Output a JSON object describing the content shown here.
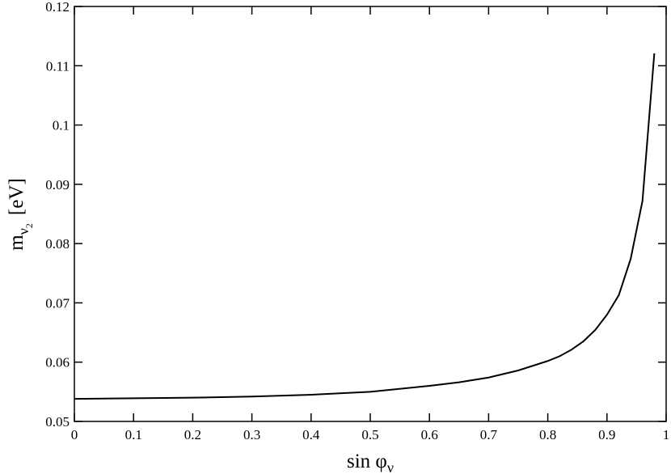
{
  "chart_data": {
    "type": "line",
    "xlabel": [
      "sin φ",
      "ν"
    ],
    "ylabel": [
      "m",
      "ν",
      "2",
      "[eV]"
    ],
    "x": [
      0,
      0.1,
      0.2,
      0.3,
      0.4,
      0.5,
      0.6,
      0.65,
      0.7,
      0.75,
      0.8,
      0.82,
      0.84,
      0.86,
      0.88,
      0.9,
      0.92,
      0.94,
      0.96,
      0.98
    ],
    "values": [
      0.0538,
      0.0539,
      0.054,
      0.0542,
      0.0545,
      0.055,
      0.056,
      0.0566,
      0.0574,
      0.0586,
      0.0602,
      0.061,
      0.0621,
      0.0635,
      0.0654,
      0.068,
      0.0713,
      0.0774,
      0.0872,
      0.1121
    ],
    "color": "#000000",
    "xlim": [
      0,
      1
    ],
    "xticks": [
      0,
      0.1,
      0.2,
      0.3,
      0.4,
      0.5,
      0.6,
      0.7,
      0.8,
      0.9,
      1
    ],
    "ylim": [
      0.05,
      0.12
    ],
    "yticks": [
      0.05,
      0.06,
      0.07,
      0.08,
      0.09,
      0.1,
      0.11,
      0.12
    ]
  }
}
